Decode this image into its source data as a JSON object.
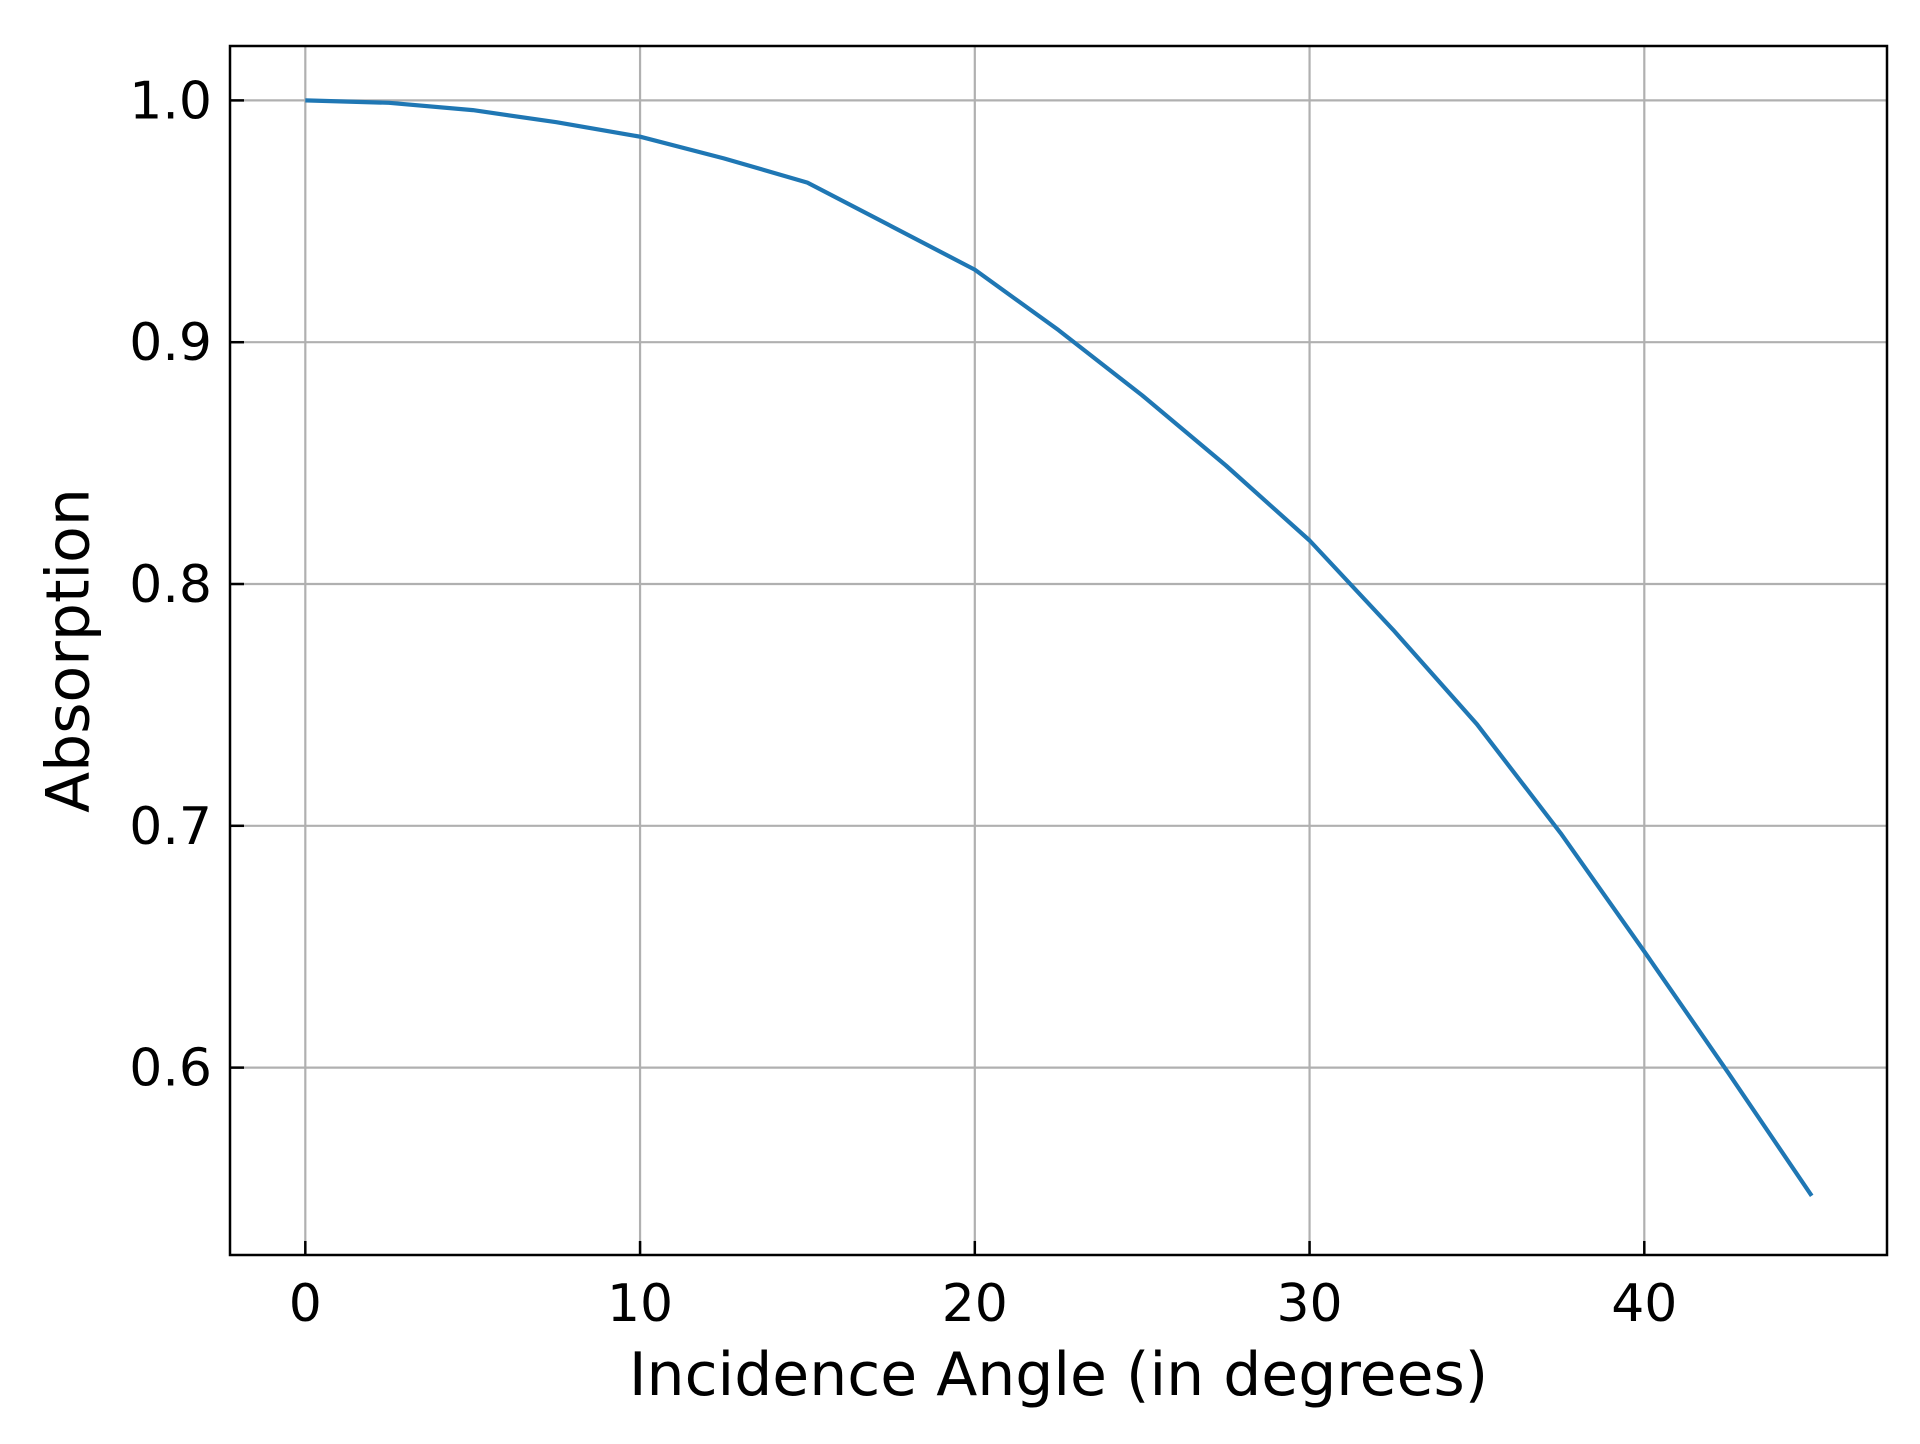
{
  "chart_data": {
    "type": "line",
    "title": "",
    "xlabel": "Incidence Angle (in degrees)",
    "ylabel": "Absorption",
    "xlim": [
      -2.25,
      47.25
    ],
    "ylim": [
      0.5225,
      1.0225
    ],
    "x_ticks": [
      0,
      10,
      20,
      30,
      40
    ],
    "x_tick_labels": [
      "0",
      "10",
      "20",
      "30",
      "40"
    ],
    "y_ticks": [
      0.6,
      0.7,
      0.8,
      0.9,
      1.0
    ],
    "y_tick_labels": [
      "0.6",
      "0.7",
      "0.8",
      "0.9",
      "1.0"
    ],
    "grid": true,
    "tick_direction": "in",
    "series": [
      {
        "color": "#1f77b4",
        "x": [
          0,
          2.5,
          5,
          7.5,
          10,
          12.5,
          15,
          17.5,
          20,
          22.5,
          25,
          27.5,
          30,
          32.5,
          35,
          37.5,
          40,
          42.5,
          45
        ],
        "y": [
          1.0,
          0.999,
          0.996,
          0.991,
          0.985,
          0.976,
          0.966,
          0.948,
          0.93,
          0.905,
          0.878,
          0.849,
          0.818,
          0.781,
          0.742,
          0.697,
          0.648,
          0.598,
          0.547
        ]
      }
    ]
  }
}
